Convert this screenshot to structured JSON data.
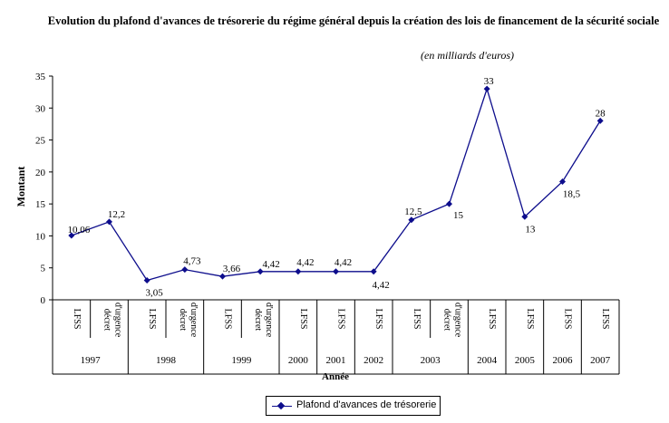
{
  "chart_data": {
    "type": "line",
    "title": "Evolution du plafond d'avances de trésorerie du régime général depuis la création des lois de financement de la sécurité sociale",
    "subtitle": "(en milliards d'euros)",
    "ylabel": "Montant",
    "xlabel": "Année",
    "ylim": [
      0,
      35
    ],
    "yticks": [
      0,
      5,
      10,
      15,
      20,
      25,
      30,
      35
    ],
    "grid": false,
    "legend_position": "bottom",
    "categories": [
      {
        "sub": "LFSS",
        "year": "1997"
      },
      {
        "sub": "décret d'urgence",
        "year": "1997"
      },
      {
        "sub": "LFSS",
        "year": "1998"
      },
      {
        "sub": "décret d'urgence",
        "year": "1998"
      },
      {
        "sub": "LFSS",
        "year": "1999"
      },
      {
        "sub": "décret d'urgence",
        "year": "1999"
      },
      {
        "sub": "LFSS",
        "year": "2000"
      },
      {
        "sub": "LFSS",
        "year": "2001"
      },
      {
        "sub": "LFSS",
        "year": "2002"
      },
      {
        "sub": "LFSS",
        "year": "2003"
      },
      {
        "sub": "décret d'urgence",
        "year": "2003"
      },
      {
        "sub": "LFSS",
        "year": "2004"
      },
      {
        "sub": "LFSS",
        "year": "2005"
      },
      {
        "sub": "LFSS",
        "year": "2006"
      },
      {
        "sub": "LFSS",
        "year": "2007"
      }
    ],
    "series": [
      {
        "name": "Plafond d'avances de trésorerie",
        "color": "#0d0d8c",
        "values": [
          10.06,
          12.2,
          3.05,
          4.73,
          3.66,
          4.42,
          4.42,
          4.42,
          4.42,
          12.5,
          15,
          33,
          13,
          18.5,
          28
        ],
        "labels": [
          "10,06",
          "12,2",
          "3,05",
          "4,73",
          "3,66",
          "4,42",
          "4,42",
          "4,42",
          "4,42",
          "12,5",
          "15",
          "33",
          "13",
          "18,5",
          "28"
        ]
      }
    ]
  }
}
